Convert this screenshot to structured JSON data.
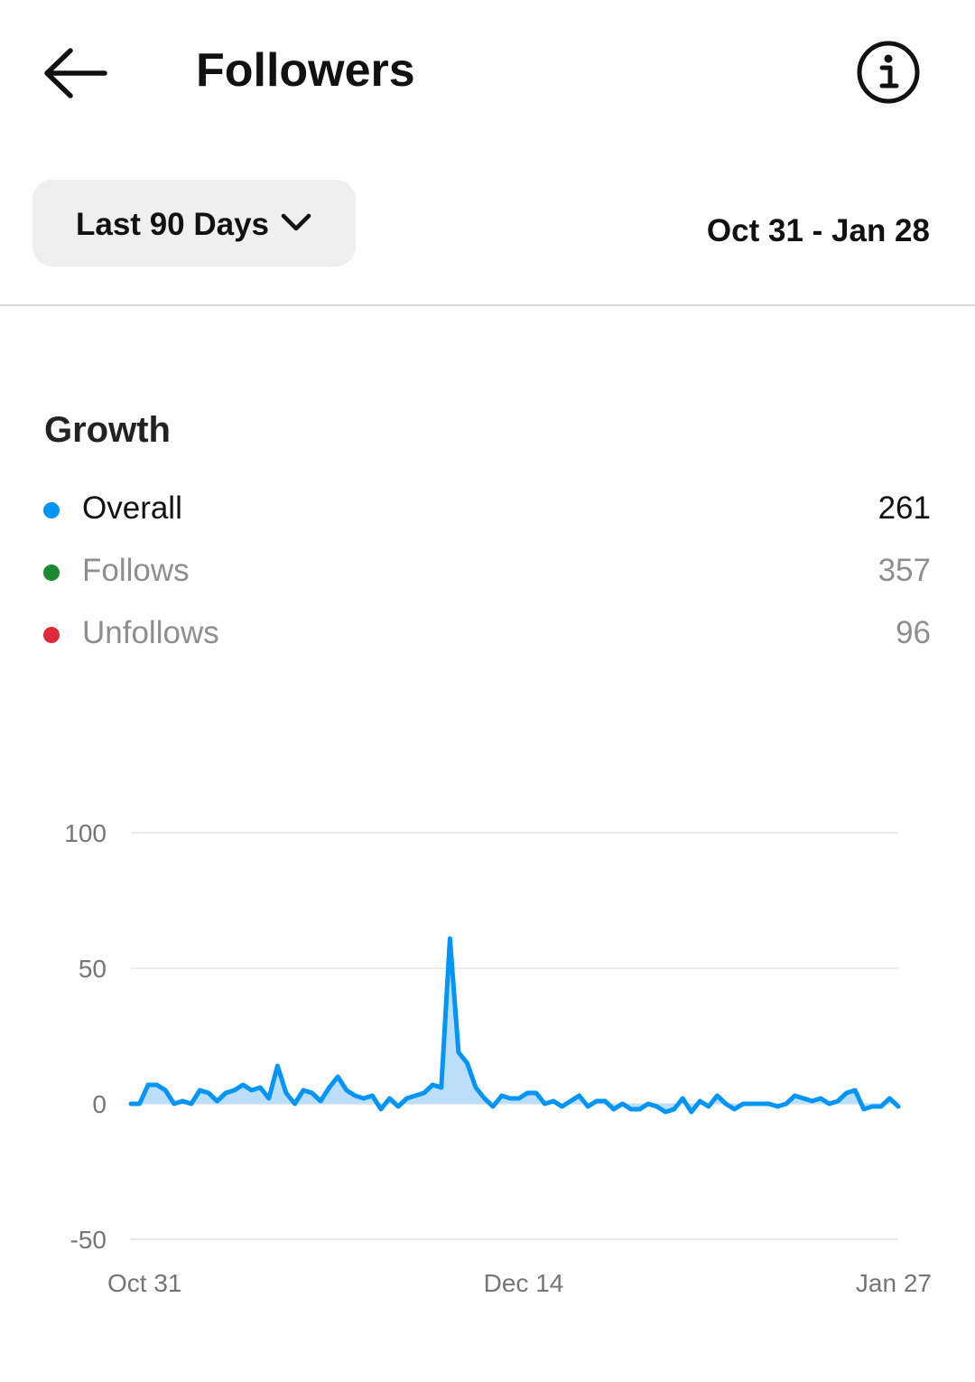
{
  "header": {
    "title": "Followers",
    "back_icon": "arrow-left-icon",
    "info_icon": "info-circle-icon"
  },
  "filter": {
    "range_label": "Last 90 Days",
    "chevron_icon": "chevron-down-icon",
    "date_span": "Oct 31 - Jan 28"
  },
  "growth": {
    "title": "Growth",
    "legend": [
      {
        "label": "Overall",
        "value": "261",
        "color": "#0095f6"
      },
      {
        "label": "Follows",
        "value": "357",
        "color": "#1a8a2e"
      },
      {
        "label": "Unfollows",
        "value": "96",
        "color": "#e0293a"
      }
    ]
  },
  "chart_data": {
    "type": "area",
    "x_tick_labels": [
      "Oct 31",
      "Dec 14",
      "Jan 27"
    ],
    "y_ticks": [
      100,
      50,
      0,
      -50
    ],
    "ylim": [
      -50,
      100
    ],
    "grid": true,
    "series": [
      {
        "name": "Overall",
        "color": "#0095f6",
        "values": [
          0,
          0,
          7,
          7,
          5,
          0,
          1,
          0,
          5,
          4,
          1,
          4,
          5,
          7,
          5,
          6,
          2,
          14,
          4,
          0,
          5,
          4,
          1,
          6,
          10,
          5,
          3,
          2,
          3,
          -2,
          2,
          -1,
          2,
          3,
          4,
          7,
          6,
          61,
          19,
          15,
          6,
          2,
          -1,
          3,
          2,
          2,
          4,
          4,
          0,
          1,
          -1,
          1,
          3,
          -1,
          1,
          1,
          -2,
          0,
          -2,
          -2,
          0,
          -1,
          -3,
          -2,
          2,
          -3,
          1,
          -1,
          3,
          0,
          -2,
          0,
          0,
          0,
          0,
          -1,
          0,
          3,
          2,
          1,
          2,
          0,
          1,
          4,
          5,
          -2,
          -1,
          -1,
          2,
          -1
        ]
      }
    ]
  }
}
